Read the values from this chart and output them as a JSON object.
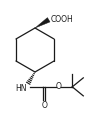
{
  "bg_color": "#ffffff",
  "line_color": "#1a1a1a",
  "line_width": 0.9,
  "figsize": [
    0.93,
    1.22
  ],
  "dpi": 100,
  "cooh_text": "COOH",
  "hn_text": "HN",
  "o_carbonyl_text": "O",
  "o_ether_text": "O"
}
